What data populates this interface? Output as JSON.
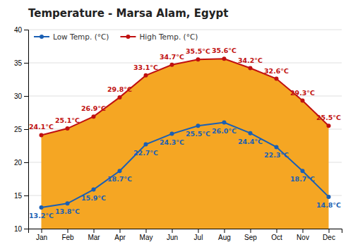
{
  "chart_data": {
    "type": "line",
    "title": "Temperature - Marsa Alam, Egypt",
    "categories": [
      "Jan",
      "Feb",
      "Mar",
      "Apr",
      "May",
      "Jun",
      "Jul",
      "Aug",
      "Sep",
      "Oct",
      "Nov",
      "Dec"
    ],
    "series": [
      {
        "name": "Low Temp. (°C)",
        "color": "#1a5fb4",
        "marker": "circle",
        "values": [
          13.2,
          13.8,
          15.9,
          18.7,
          22.7,
          24.3,
          25.5,
          26.0,
          24.4,
          22.3,
          18.7,
          14.8
        ],
        "value_labels": [
          "13.2°C",
          "13.8°C",
          "15.9°C",
          "18.7°C",
          "22.7°C",
          "24.3°C",
          "25.5°C",
          "26.0°C",
          "24.4°C",
          "22.3°C",
          "18.7°C",
          "14.8°C"
        ]
      },
      {
        "name": "High Temp. (°C)",
        "color": "#c01010",
        "marker": "circle",
        "type": "area",
        "values": [
          24.1,
          25.1,
          26.9,
          29.8,
          33.1,
          34.7,
          35.5,
          35.6,
          34.2,
          32.6,
          29.3,
          25.5
        ],
        "value_labels": [
          "24.1°C",
          "25.1°C",
          "26.9°C",
          "29.8°C",
          "33.1°C",
          "34.7°C",
          "35.5°C",
          "35.6°C",
          "34.2°C",
          "32.6°C",
          "29.3°C",
          "25.5°C"
        ]
      }
    ],
    "color": "#f5a623",
    "ylim": [
      10,
      40
    ],
    "yticks": [
      10,
      15,
      20,
      25,
      30,
      35,
      40
    ],
    "grid": true,
    "legend": "upper left",
    "data_labels": true
  }
}
